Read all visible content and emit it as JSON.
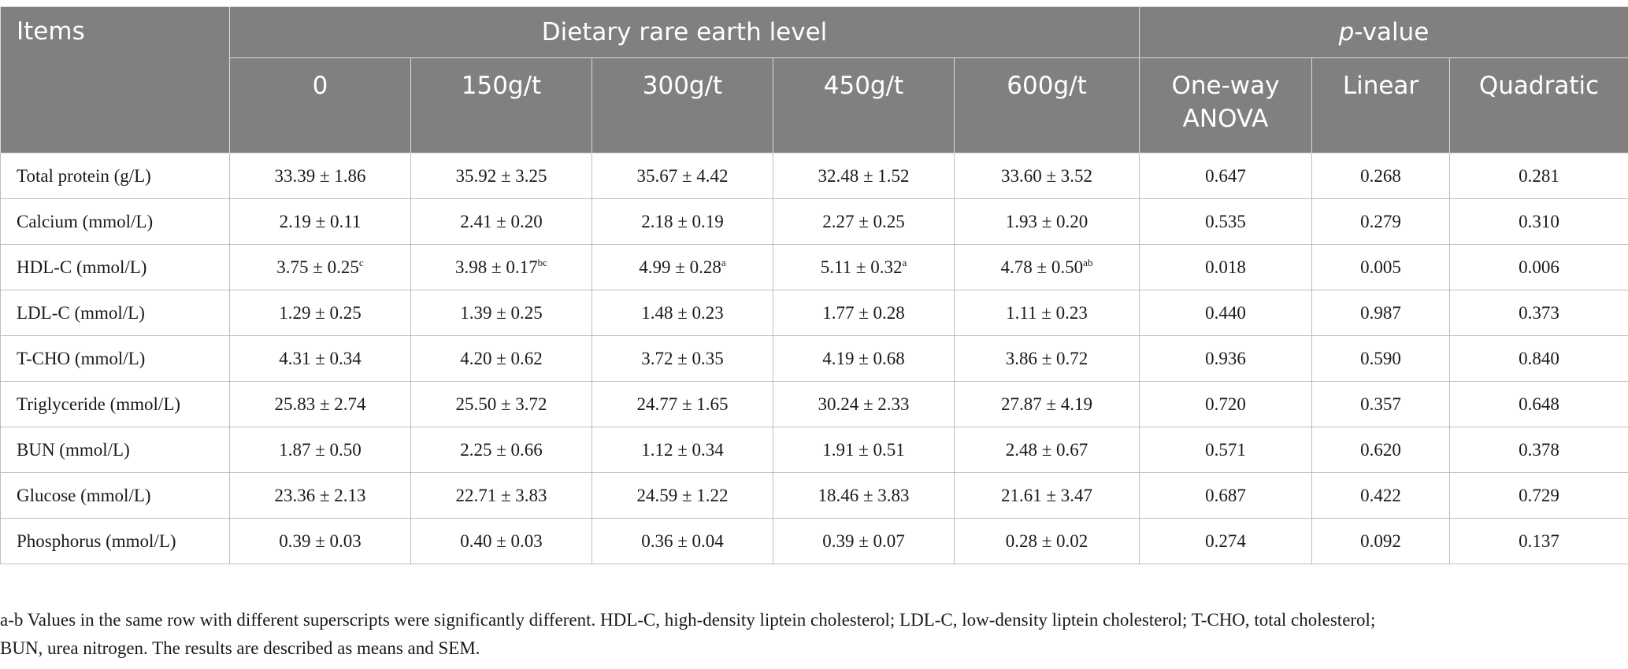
{
  "header": {
    "items": "Items",
    "group_title": "Dietary rare earth level",
    "pvalue_italic": "p",
    "pvalue_rest": "-value",
    "levels": [
      "0",
      "150g/t",
      "300g/t",
      "450g/t",
      "600g/t"
    ],
    "tests": [
      {
        "line1": "One-way",
        "line2": "ANOVA"
      },
      {
        "line1": "Linear",
        "line2": ""
      },
      {
        "line1": "Quadratic",
        "line2": ""
      }
    ]
  },
  "rows": [
    {
      "item": "Total protein (g/L)",
      "cells": [
        [
          "33.39 ± 1.86",
          ""
        ],
        [
          "35.92 ± 3.25",
          ""
        ],
        [
          "35.67 ± 4.42",
          ""
        ],
        [
          "32.48 ± 1.52",
          ""
        ],
        [
          "33.60 ± 3.52",
          ""
        ]
      ],
      "p": [
        "0.647",
        "0.268",
        "0.281"
      ]
    },
    {
      "item": "Calcium (mmol/L)",
      "cells": [
        [
          "2.19 ± 0.11",
          ""
        ],
        [
          "2.41 ± 0.20",
          ""
        ],
        [
          "2.18 ± 0.19",
          ""
        ],
        [
          "2.27 ± 0.25",
          ""
        ],
        [
          "1.93 ± 0.20",
          ""
        ]
      ],
      "p": [
        "0.535",
        "0.279",
        "0.310"
      ]
    },
    {
      "item": "HDL-C (mmol/L)",
      "cells": [
        [
          "3.75 ± 0.25",
          "c"
        ],
        [
          "3.98 ± 0.17",
          "bc"
        ],
        [
          "4.99 ± 0.28",
          "a"
        ],
        [
          "5.11 ± 0.32",
          "a"
        ],
        [
          "4.78 ± 0.50",
          "ab"
        ]
      ],
      "p": [
        "0.018",
        "0.005",
        "0.006"
      ]
    },
    {
      "item": "LDL-C (mmol/L)",
      "cells": [
        [
          "1.29 ± 0.25",
          ""
        ],
        [
          "1.39 ± 0.25",
          ""
        ],
        [
          "1.48 ± 0.23",
          ""
        ],
        [
          "1.77 ± 0.28",
          ""
        ],
        [
          "1.11 ± 0.23",
          ""
        ]
      ],
      "p": [
        "0.440",
        "0.987",
        "0.373"
      ]
    },
    {
      "item": "T-CHO (mmol/L)",
      "cells": [
        [
          "4.31 ± 0.34",
          ""
        ],
        [
          "4.20 ± 0.62",
          ""
        ],
        [
          "3.72 ± 0.35",
          ""
        ],
        [
          "4.19 ± 0.68",
          ""
        ],
        [
          "3.86 ± 0.72",
          ""
        ]
      ],
      "p": [
        "0.936",
        "0.590",
        "0.840"
      ]
    },
    {
      "item": "Triglyceride (mmol/L)",
      "cells": [
        [
          "25.83 ± 2.74",
          ""
        ],
        [
          "25.50 ± 3.72",
          ""
        ],
        [
          "24.77 ± 1.65",
          ""
        ],
        [
          "30.24 ± 2.33",
          ""
        ],
        [
          "27.87 ± 4.19",
          ""
        ]
      ],
      "p": [
        "0.720",
        "0.357",
        "0.648"
      ]
    },
    {
      "item": "BUN (mmol/L)",
      "cells": [
        [
          "1.87 ± 0.50",
          ""
        ],
        [
          "2.25 ± 0.66",
          ""
        ],
        [
          "1.12 ± 0.34",
          ""
        ],
        [
          "1.91 ± 0.51",
          ""
        ],
        [
          "2.48 ± 0.67",
          ""
        ]
      ],
      "p": [
        "0.571",
        "0.620",
        "0.378"
      ]
    },
    {
      "item": "Glucose (mmol/L)",
      "cells": [
        [
          "23.36 ± 2.13",
          ""
        ],
        [
          "22.71 ± 3.83",
          ""
        ],
        [
          "24.59 ± 1.22",
          ""
        ],
        [
          "18.46 ± 3.83",
          ""
        ],
        [
          "21.61 ± 3.47",
          ""
        ]
      ],
      "p": [
        "0.687",
        "0.422",
        "0.729"
      ]
    },
    {
      "item": "Phosphorus (mmol/L)",
      "cells": [
        [
          "0.39 ± 0.03",
          ""
        ],
        [
          "0.40 ± 0.03",
          ""
        ],
        [
          "0.36 ± 0.04",
          ""
        ],
        [
          "0.39 ± 0.07",
          ""
        ],
        [
          "0.28 ± 0.02",
          ""
        ]
      ],
      "p": [
        "0.274",
        "0.092",
        "0.137"
      ]
    }
  ],
  "footnote": {
    "line1": "a-b Values in the same row with different superscripts were significantly different. HDL-C, high-density liptein cholesterol; LDL-C, low-density liptein cholesterol; T-CHO, total cholesterol;",
    "line2": "BUN, urea nitrogen. The results are described as means and SEM."
  }
}
